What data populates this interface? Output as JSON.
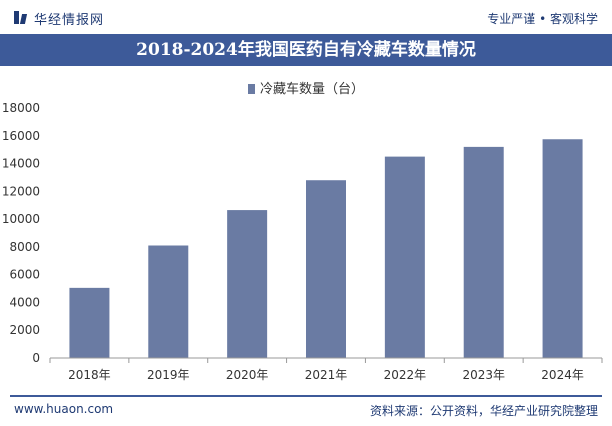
{
  "brand": {
    "name": "华经情报网",
    "tagline": "专业严谨 • 客观科学",
    "website": "www.huaon.com"
  },
  "source": "资料来源：公开资料，华经产业研究院整理",
  "colors": {
    "title_bg": "#3d5a99",
    "bar": "#6a7ba3",
    "brand": "#1f3a73"
  },
  "chart_data": {
    "type": "bar",
    "title": "2018-2024年我国医药自有冷藏车数量情况",
    "categories": [
      "2018年",
      "2019年",
      "2020年",
      "2021年",
      "2022年",
      "2023年",
      "2024年"
    ],
    "series": [
      {
        "name": "冷藏车数量（台）",
        "values": [
          5050,
          8100,
          10650,
          12800,
          14500,
          15200,
          15750
        ]
      }
    ],
    "ylim": [
      0,
      18000
    ],
    "yticks": [
      0,
      2000,
      4000,
      6000,
      8000,
      10000,
      12000,
      14000,
      16000,
      18000
    ],
    "grid": false,
    "legend": "top-center"
  }
}
